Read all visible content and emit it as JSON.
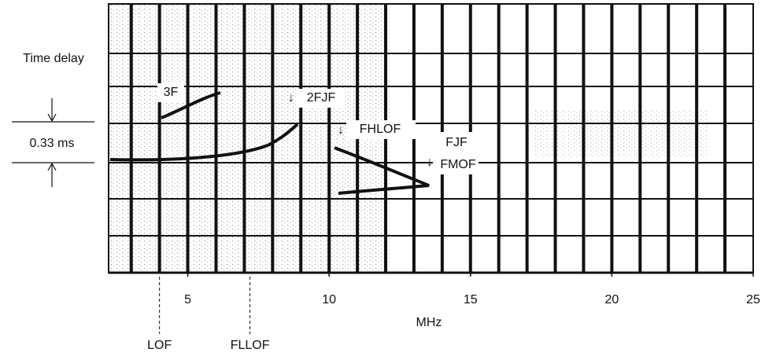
{
  "chart_data": {
    "type": "ionogram",
    "xlabel": "MHz",
    "xlim": [
      2.2,
      25
    ],
    "xticks": [
      5,
      10,
      15,
      20,
      25
    ],
    "grid": true,
    "delay_label": "Time delay",
    "delay_step": "0.33 ms",
    "annotations": [
      "3F",
      "2FJF",
      "FHLOF",
      "FJF",
      "FMOF"
    ],
    "markers": [
      {
        "label": "LOF",
        "x": 4.0
      },
      {
        "label": "FLLOF",
        "x": 7.2
      }
    ]
  }
}
